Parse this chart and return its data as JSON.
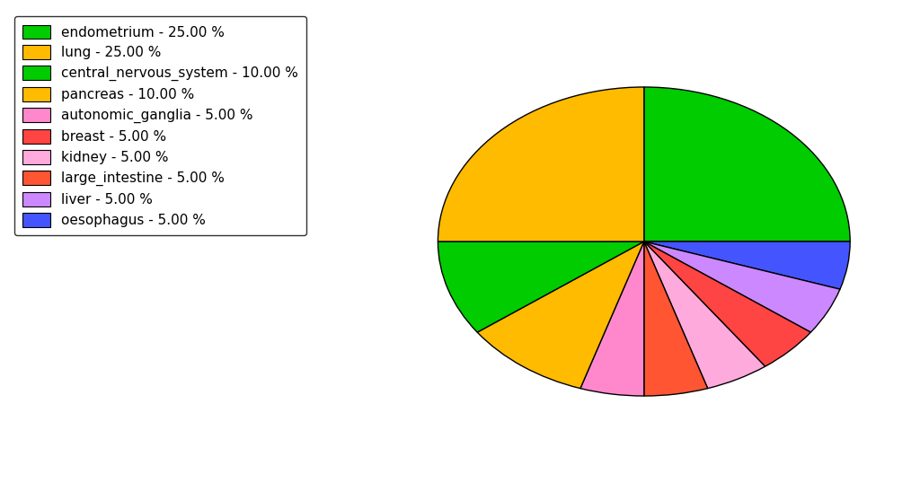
{
  "labels": [
    "endometrium",
    "oesophagus",
    "liver",
    "breast",
    "kidney",
    "large_intestine",
    "autonomic_ganglia",
    "pancreas",
    "central_nervous_system",
    "lung"
  ],
  "values": [
    25.0,
    5.0,
    5.0,
    5.0,
    5.0,
    5.0,
    5.0,
    10.0,
    10.0,
    25.0
  ],
  "colors": [
    "#00cc00",
    "#4455ff",
    "#cc88ff",
    "#ff4444",
    "#ffaadd",
    "#ff5533",
    "#ff88cc",
    "#ffbb00",
    "#00cc00",
    "#ffbb00"
  ],
  "legend_labels": [
    "endometrium - 25.00 %",
    "lung - 25.00 %",
    "central_nervous_system - 10.00 %",
    "pancreas - 10.00 %",
    "autonomic_ganglia - 5.00 %",
    "breast - 5.00 %",
    "kidney - 5.00 %",
    "large_intestine - 5.00 %",
    "liver - 5.00 %",
    "oesophagus - 5.00 %"
  ],
  "legend_colors": [
    "#00cc00",
    "#ffbb00",
    "#00cc00",
    "#ffbb00",
    "#ff88cc",
    "#ff4444",
    "#ffaadd",
    "#ff5533",
    "#cc88ff",
    "#4455ff"
  ],
  "background_color": "#ffffff",
  "startangle": 90,
  "counterclock": false,
  "ellipse_ratio": 0.75
}
